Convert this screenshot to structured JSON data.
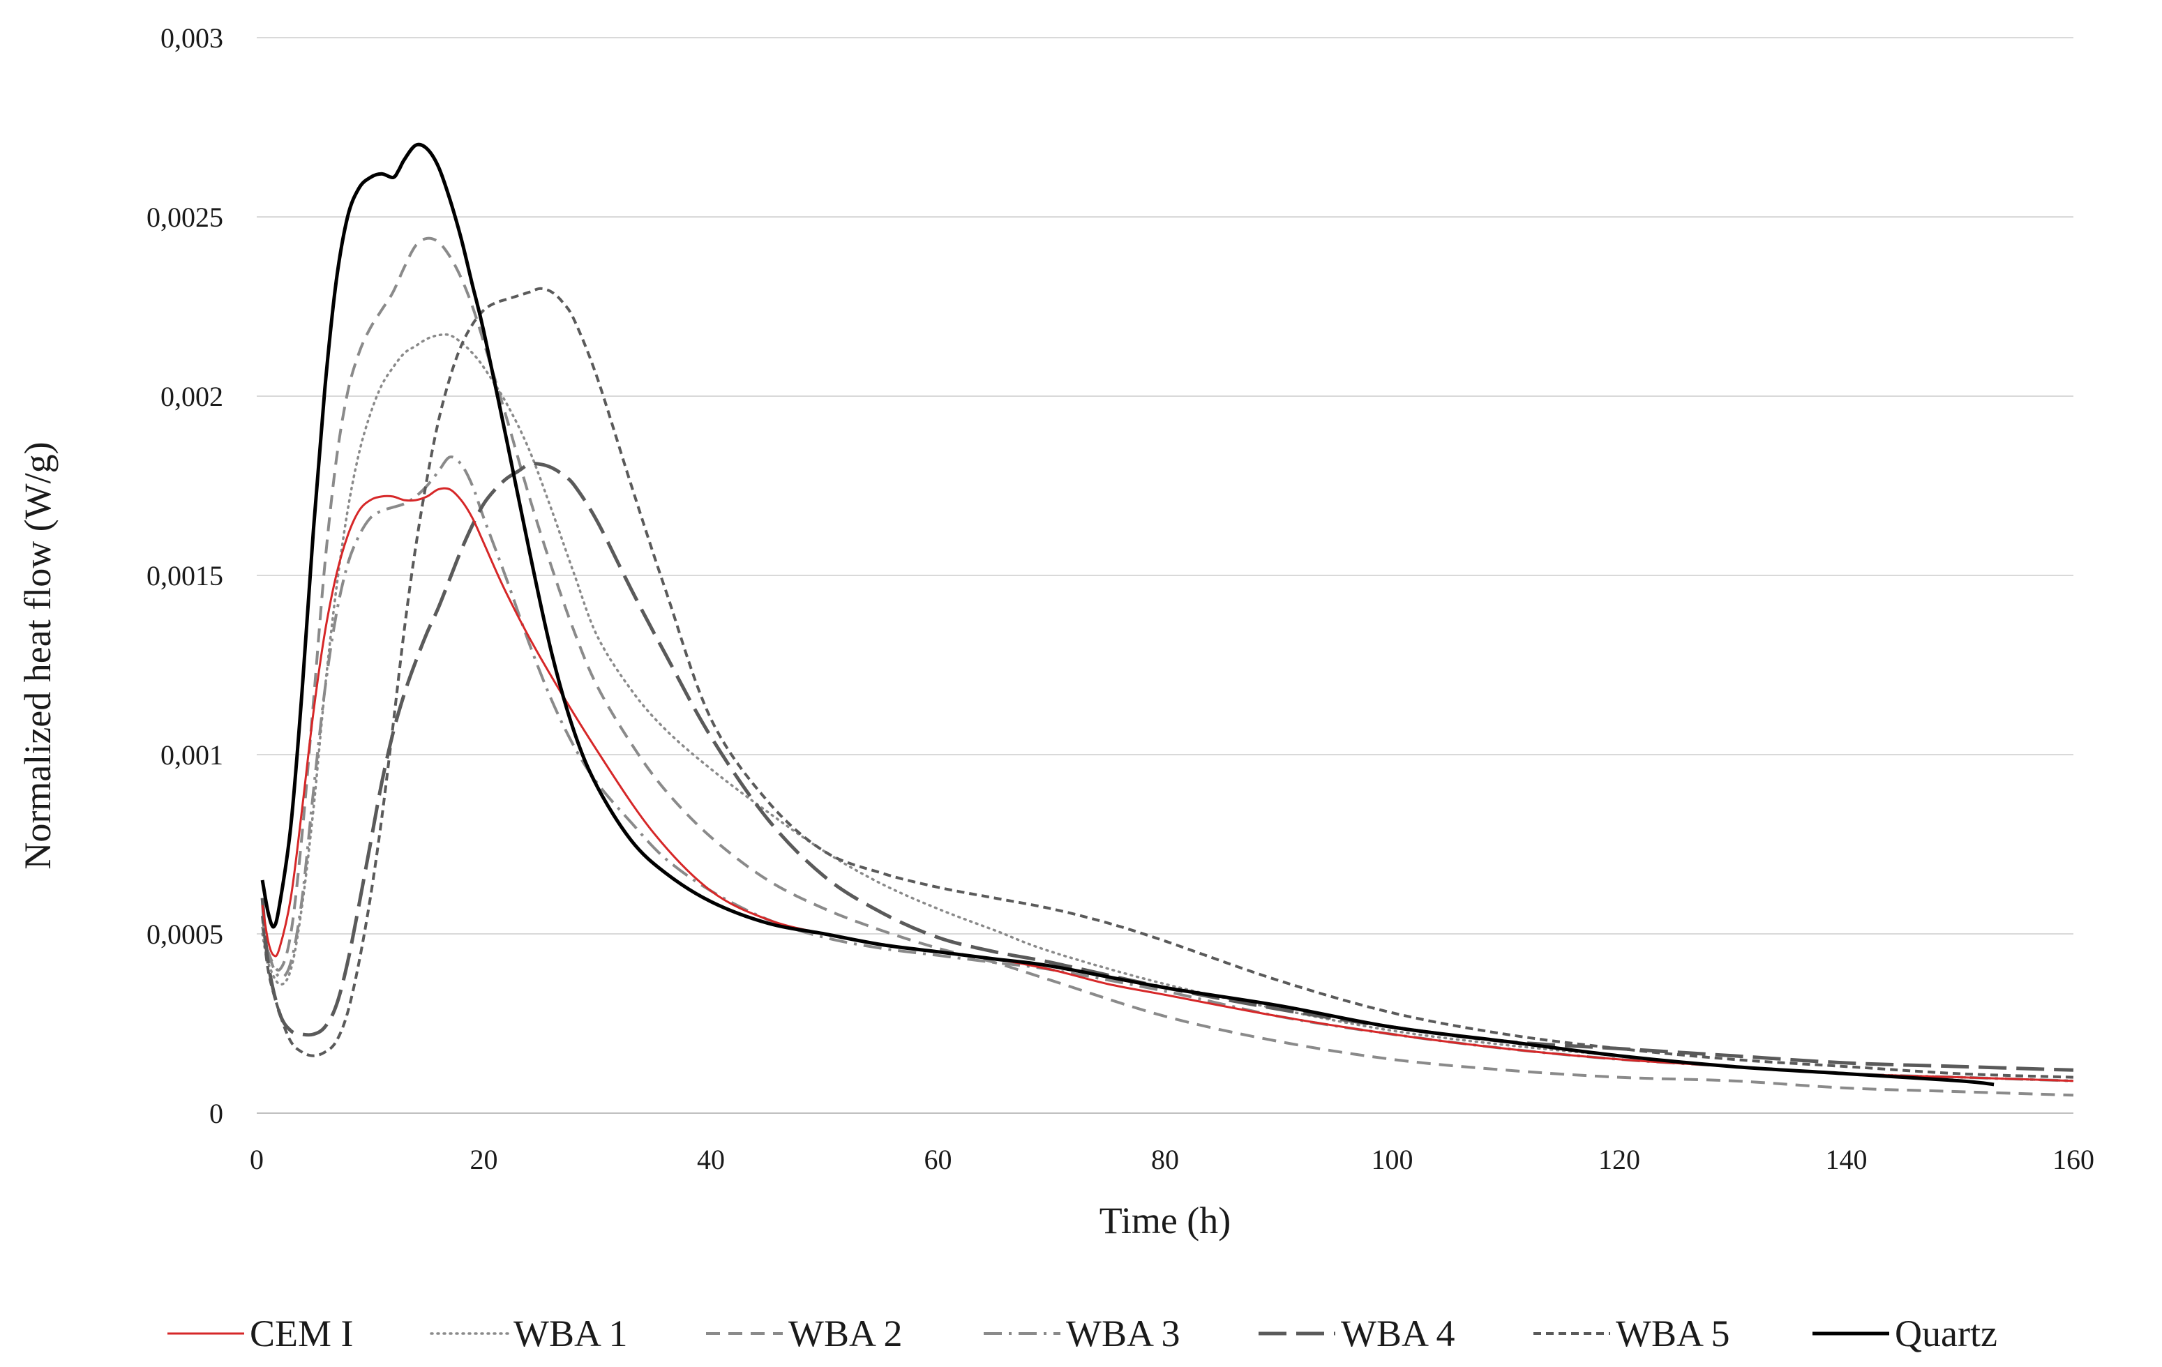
{
  "chart_data": {
    "type": "line",
    "title": "",
    "xlabel": "Time (h)",
    "ylabel": "Normalized heat flow (W/g)",
    "xlim": [
      0,
      160
    ],
    "ylim": [
      0,
      0.003
    ],
    "xticks": [
      0,
      20,
      40,
      60,
      80,
      100,
      120,
      140,
      160
    ],
    "xtick_labels": [
      "0",
      "20",
      "40",
      "60",
      "80",
      "100",
      "120",
      "140",
      "160"
    ],
    "yticks": [
      0,
      0.0005,
      0.001,
      0.0015,
      0.002,
      0.0025,
      0.003
    ],
    "ytick_labels": [
      "0",
      "0,0005",
      "0,001",
      "0,0015",
      "0,002",
      "0,0025",
      "0,003"
    ],
    "grid": "horizontal",
    "legend_position": "bottom",
    "series": [
      {
        "name": "CEM I",
        "color": "#d62728",
        "style": "solid",
        "x": [
          0.5,
          1,
          1.5,
          2,
          3,
          4,
          5,
          6,
          7,
          8,
          9,
          10,
          11,
          12,
          13,
          14,
          15,
          16,
          17,
          18,
          19,
          20,
          22,
          25,
          30,
          35,
          40,
          45,
          50,
          55,
          60,
          65,
          70,
          75,
          80,
          90,
          100,
          110,
          120,
          130,
          140,
          150,
          160
        ],
        "y": [
          0.00058,
          0.00048,
          0.00044,
          0.00046,
          0.0006,
          0.00085,
          0.00112,
          0.00134,
          0.0015,
          0.00161,
          0.00168,
          0.00171,
          0.00172,
          0.00172,
          0.00171,
          0.00171,
          0.00172,
          0.00174,
          0.00174,
          0.00171,
          0.00166,
          0.00159,
          0.00145,
          0.00127,
          0.00101,
          0.00078,
          0.00062,
          0.00054,
          0.0005,
          0.00047,
          0.00045,
          0.00043,
          0.0004,
          0.00036,
          0.00033,
          0.00027,
          0.00022,
          0.00018,
          0.00015,
          0.00013,
          0.00011,
          0.0001,
          9e-05
        ]
      },
      {
        "name": "WBA 1",
        "color": "#8a8a8a",
        "style": "dotted",
        "x": [
          0.5,
          1,
          2,
          3,
          4,
          5,
          6,
          7,
          8,
          9,
          10,
          11,
          12,
          13,
          14,
          15,
          16,
          17,
          18,
          19,
          20,
          22,
          24,
          26,
          28,
          30,
          33,
          36,
          40,
          45,
          50,
          55,
          60,
          65,
          70,
          80,
          90,
          100,
          110,
          120,
          130,
          140,
          150,
          160
        ],
        "y": [
          0.0005,
          0.00042,
          0.00036,
          0.0004,
          0.00058,
          0.00085,
          0.00118,
          0.00146,
          0.00168,
          0.00184,
          0.00195,
          0.00203,
          0.00208,
          0.00212,
          0.00214,
          0.00216,
          0.00217,
          0.00217,
          0.00215,
          0.00212,
          0.00208,
          0.00198,
          0.00185,
          0.00168,
          0.0015,
          0.00133,
          0.00118,
          0.00107,
          0.00096,
          0.00084,
          0.00073,
          0.00064,
          0.00057,
          0.00051,
          0.00045,
          0.00036,
          0.00029,
          0.00023,
          0.00019,
          0.00016,
          0.00013,
          0.00011,
          0.0001,
          9e-05
        ]
      },
      {
        "name": "WBA 2",
        "color": "#8a8a8a",
        "style": "dashed",
        "x": [
          0.5,
          1,
          2,
          3,
          4,
          5,
          6,
          7,
          8,
          9,
          10,
          11,
          12,
          13,
          14,
          15,
          16,
          17,
          18,
          19,
          20,
          22,
          24,
          26,
          28,
          30,
          33,
          36,
          40,
          45,
          50,
          55,
          60,
          65,
          70,
          80,
          90,
          100,
          110,
          120,
          130,
          140,
          150,
          160
        ],
        "y": [
          0.00052,
          0.00045,
          0.0004,
          0.0005,
          0.00078,
          0.00115,
          0.00153,
          0.00182,
          0.00201,
          0.00212,
          0.00219,
          0.00224,
          0.00229,
          0.00236,
          0.00242,
          0.00244,
          0.00243,
          0.00239,
          0.00233,
          0.00225,
          0.00215,
          0.00194,
          0.00172,
          0.00152,
          0.00134,
          0.00119,
          0.00103,
          0.0009,
          0.00077,
          0.00065,
          0.00057,
          0.00051,
          0.00046,
          0.00042,
          0.00037,
          0.00027,
          0.0002,
          0.00015,
          0.00012,
          0.0001,
          9e-05,
          7e-05,
          6e-05,
          5e-05
        ]
      },
      {
        "name": "WBA 3",
        "color": "#8a8a8a",
        "style": "dashdot",
        "x": [
          0.5,
          1,
          2,
          3,
          4,
          5,
          6,
          7,
          8,
          9,
          10,
          11,
          12,
          13,
          14,
          15,
          16,
          17,
          18,
          19,
          20,
          22,
          24,
          26,
          28,
          30,
          33,
          36,
          40,
          45,
          50,
          55,
          60,
          65,
          70,
          80,
          90,
          100,
          110,
          120,
          130,
          140,
          150,
          160
        ],
        "y": [
          0.00055,
          0.00045,
          0.00038,
          0.00042,
          0.0006,
          0.0009,
          0.00118,
          0.00139,
          0.00153,
          0.00161,
          0.00166,
          0.00168,
          0.00169,
          0.0017,
          0.00172,
          0.00175,
          0.00179,
          0.00183,
          0.00181,
          0.00175,
          0.00166,
          0.00149,
          0.00131,
          0.00115,
          0.00102,
          0.00092,
          0.00081,
          0.00071,
          0.00062,
          0.00054,
          0.00049,
          0.00046,
          0.00044,
          0.00042,
          0.0004,
          0.00034,
          0.00027,
          0.00022,
          0.00018,
          0.00015,
          0.00013,
          0.00011,
          0.0001,
          9e-05
        ]
      },
      {
        "name": "WBA 4",
        "color": "#5a5a5a",
        "style": "longdash",
        "x": [
          0.5,
          1,
          2,
          3,
          4,
          5,
          6,
          7,
          8,
          9,
          10,
          11,
          12,
          13,
          14,
          15,
          16,
          17,
          18,
          19,
          20,
          21,
          22,
          23,
          24,
          25,
          26,
          27,
          28,
          30,
          33,
          36,
          40,
          45,
          50,
          55,
          60,
          65,
          70,
          80,
          90,
          100,
          110,
          120,
          130,
          140,
          150,
          160
        ],
        "y": [
          0.0006,
          0.00042,
          0.00028,
          0.00023,
          0.00022,
          0.00022,
          0.00024,
          0.0003,
          0.00042,
          0.00058,
          0.00075,
          0.00092,
          0.00106,
          0.00117,
          0.00126,
          0.00134,
          0.00141,
          0.00149,
          0.00157,
          0.00164,
          0.0017,
          0.00174,
          0.00177,
          0.00179,
          0.00181,
          0.00181,
          0.0018,
          0.00178,
          0.00175,
          0.00165,
          0.00146,
          0.00128,
          0.00105,
          0.00082,
          0.00066,
          0.00056,
          0.00049,
          0.00045,
          0.00042,
          0.00035,
          0.00029,
          0.00024,
          0.0002,
          0.00018,
          0.00016,
          0.00014,
          0.00013,
          0.00012
        ]
      },
      {
        "name": "WBA 5",
        "color": "#5a5a5a",
        "style": "shortdash",
        "x": [
          0.5,
          1,
          2,
          3,
          4,
          5,
          6,
          7,
          8,
          9,
          10,
          11,
          12,
          13,
          14,
          15,
          16,
          17,
          18,
          19,
          20,
          21,
          22,
          23,
          24,
          25,
          26,
          27,
          28,
          30,
          33,
          36,
          40,
          45,
          50,
          55,
          60,
          65,
          70,
          75,
          80,
          90,
          100,
          110,
          120,
          130,
          140,
          150,
          160
        ],
        "y": [
          0.00055,
          0.0004,
          0.00028,
          0.0002,
          0.00017,
          0.00016,
          0.00017,
          0.0002,
          0.00028,
          0.00042,
          0.0006,
          0.00082,
          0.00108,
          0.00135,
          0.00158,
          0.00177,
          0.00193,
          0.00205,
          0.00214,
          0.0022,
          0.00224,
          0.00226,
          0.00227,
          0.00228,
          0.00229,
          0.0023,
          0.00229,
          0.00226,
          0.00221,
          0.00205,
          0.00175,
          0.00146,
          0.0011,
          0.00087,
          0.00073,
          0.00067,
          0.00063,
          0.0006,
          0.00057,
          0.00053,
          0.00048,
          0.00037,
          0.00028,
          0.00022,
          0.00018,
          0.00015,
          0.00013,
          0.00011,
          0.0001
        ]
      },
      {
        "name": "Quartz",
        "color": "#000000",
        "style": "solid",
        "x": [
          0.5,
          1,
          1.5,
          2,
          3,
          4,
          5,
          6,
          7,
          8,
          9,
          10,
          11,
          12,
          12.5,
          13,
          14,
          15,
          16,
          17,
          18,
          19,
          20,
          22,
          24,
          26,
          28,
          30,
          33,
          36,
          40,
          45,
          50,
          55,
          60,
          65,
          70,
          80,
          90,
          100,
          110,
          120,
          130,
          140,
          150,
          153
        ],
        "y": [
          0.00065,
          0.00056,
          0.00052,
          0.00058,
          0.0008,
          0.00118,
          0.00163,
          0.00202,
          0.00232,
          0.0025,
          0.00258,
          0.00261,
          0.00262,
          0.00261,
          0.00263,
          0.00266,
          0.0027,
          0.00269,
          0.00264,
          0.00255,
          0.00244,
          0.00231,
          0.00218,
          0.00188,
          0.00157,
          0.00128,
          0.00106,
          0.00091,
          0.00076,
          0.00067,
          0.00059,
          0.00053,
          0.0005,
          0.00047,
          0.00045,
          0.00043,
          0.00041,
          0.00035,
          0.0003,
          0.00024,
          0.0002,
          0.00016,
          0.00013,
          0.00011,
          9e-05,
          8e-05
        ]
      }
    ]
  }
}
